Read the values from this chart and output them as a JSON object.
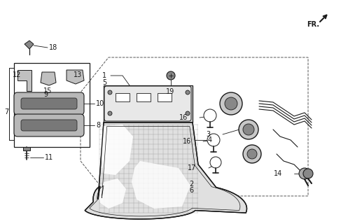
{
  "bg_color": "#ffffff",
  "line_color": "#1a1a1a",
  "fig_width": 4.87,
  "fig_height": 3.2,
  "dpi": 100
}
